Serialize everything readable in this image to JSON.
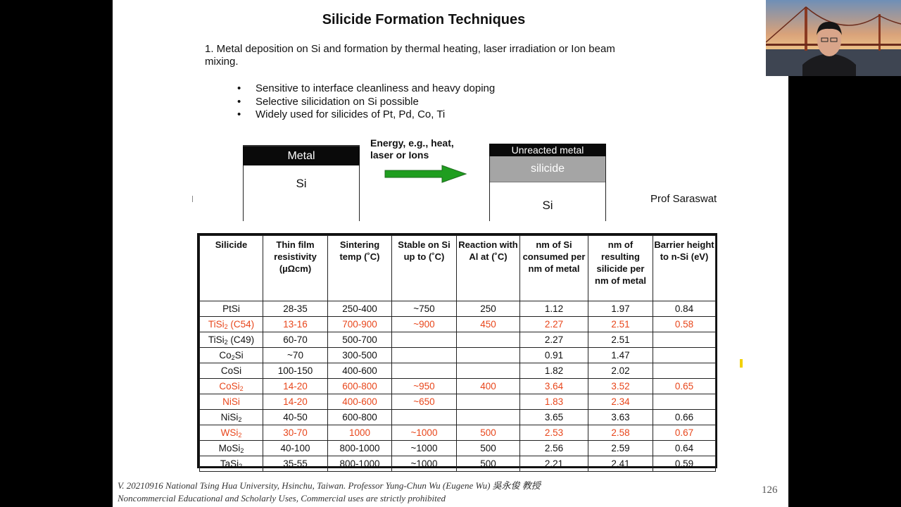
{
  "slide": {
    "title": "Silicide Formation Techniques",
    "point": "1.  Metal deposition on Si and formation by thermal heating, laser irradiation or Ion beam mixing.",
    "bullets": [
      "Sensitive to interface cleanliness and heavy doping",
      "Selective silicidation on Si possible",
      "Widely used for silicides of Pt, Pd, Co, Ti"
    ],
    "diagram": {
      "left_metal": "Metal",
      "left_si": "Si",
      "energy_label": "Energy, e.g., heat, laser or Ions",
      "right_unreacted": "Unreacted metal",
      "right_silicide": "silicide",
      "right_si": "Si"
    },
    "credit": "Prof Saraswat",
    "table": {
      "headers": [
        "Silicide",
        "Thin film resistivity (µΩcm)",
        "Sintering temp (˚C)",
        "Stable on Si up to (˚C)",
        "Reaction with Al at (˚C)",
        "nm of Si consumed per nm of metal",
        "nm of resulting silicide per nm of metal",
        "Barrier height to n-Si (eV)"
      ],
      "rows": [
        {
          "name": "PtSi",
          "base": "PtSi",
          "sub": "",
          "suffix": "",
          "highlight": false,
          "cells": [
            "28-35",
            "250-400",
            "~750",
            "250",
            "1.12",
            "1.97",
            "0.84"
          ]
        },
        {
          "name": "TiSi2 (C54)",
          "base": "TiSi",
          "sub": "2",
          "suffix": " (C54)",
          "highlight": true,
          "cells": [
            "13-16",
            "700-900",
            "~900",
            "450",
            "2.27",
            "2.51",
            "0.58"
          ]
        },
        {
          "name": "TiSi2 (C49)",
          "base": "TiSi",
          "sub": "2",
          "suffix": " (C49)",
          "highlight": false,
          "cells": [
            "60-70",
            "500-700",
            "",
            "",
            "2.27",
            "2.51",
            ""
          ]
        },
        {
          "name": "Co2Si",
          "base": "Co",
          "sub": "2",
          "suffix": "Si",
          "highlight": false,
          "cells": [
            "~70",
            "300-500",
            "",
            "",
            "0.91",
            "1.47",
            ""
          ]
        },
        {
          "name": "CoSi",
          "base": "CoSi",
          "sub": "",
          "suffix": "",
          "highlight": false,
          "cells": [
            "100-150",
            "400-600",
            "",
            "",
            "1.82",
            "2.02",
            ""
          ]
        },
        {
          "name": "CoSi2",
          "base": "CoSi",
          "sub": "2",
          "suffix": "",
          "highlight": true,
          "cells": [
            "14-20",
            "600-800",
            "~950",
            "400",
            "3.64",
            "3.52",
            "0.65"
          ]
        },
        {
          "name": "NiSi",
          "base": "NiSi",
          "sub": "",
          "suffix": "",
          "highlight": true,
          "cells": [
            "14-20",
            "400-600",
            "~650",
            "",
            "1.83",
            "2.34",
            ""
          ]
        },
        {
          "name": "NiSi2",
          "base": "NiSi",
          "sub": "2",
          "suffix": "",
          "highlight": false,
          "cells": [
            "40-50",
            "600-800",
            "",
            "",
            "3.65",
            "3.63",
            "0.66"
          ]
        },
        {
          "name": "WSi2",
          "base": "WSi",
          "sub": "2",
          "suffix": "",
          "highlight": true,
          "cells": [
            "30-70",
            "1000",
            "~1000",
            "500",
            "2.53",
            "2.58",
            "0.67"
          ]
        },
        {
          "name": "MoSi2",
          "base": "MoSi",
          "sub": "2",
          "suffix": "",
          "highlight": false,
          "cells": [
            "40-100",
            "800-1000",
            "~1000",
            "500",
            "2.56",
            "2.59",
            "0.64"
          ]
        },
        {
          "name": "TaSi2",
          "base": "TaSi",
          "sub": "2",
          "suffix": "",
          "highlight": false,
          "cells": [
            "35-55",
            "800-1000",
            "~1000",
            "500",
            "2.21",
            "2.41",
            "0.59"
          ]
        }
      ]
    },
    "footer_line1": "V. 20210916 National Tsing Hua University, Hsinchu, Taiwan. Professor Yung-Chun Wu (Eugene Wu) 吳永俊 教授",
    "footer_line2": "Noncommercial Educational and Scholarly Uses, Commercial uses are strictly prohibited",
    "page_number": "126"
  },
  "colors": {
    "highlight_text": "#e8461b",
    "arrow_green": "#1f9e1f",
    "silicide_gray": "#a5a5a5",
    "metal_black": "#0a0a0a"
  }
}
